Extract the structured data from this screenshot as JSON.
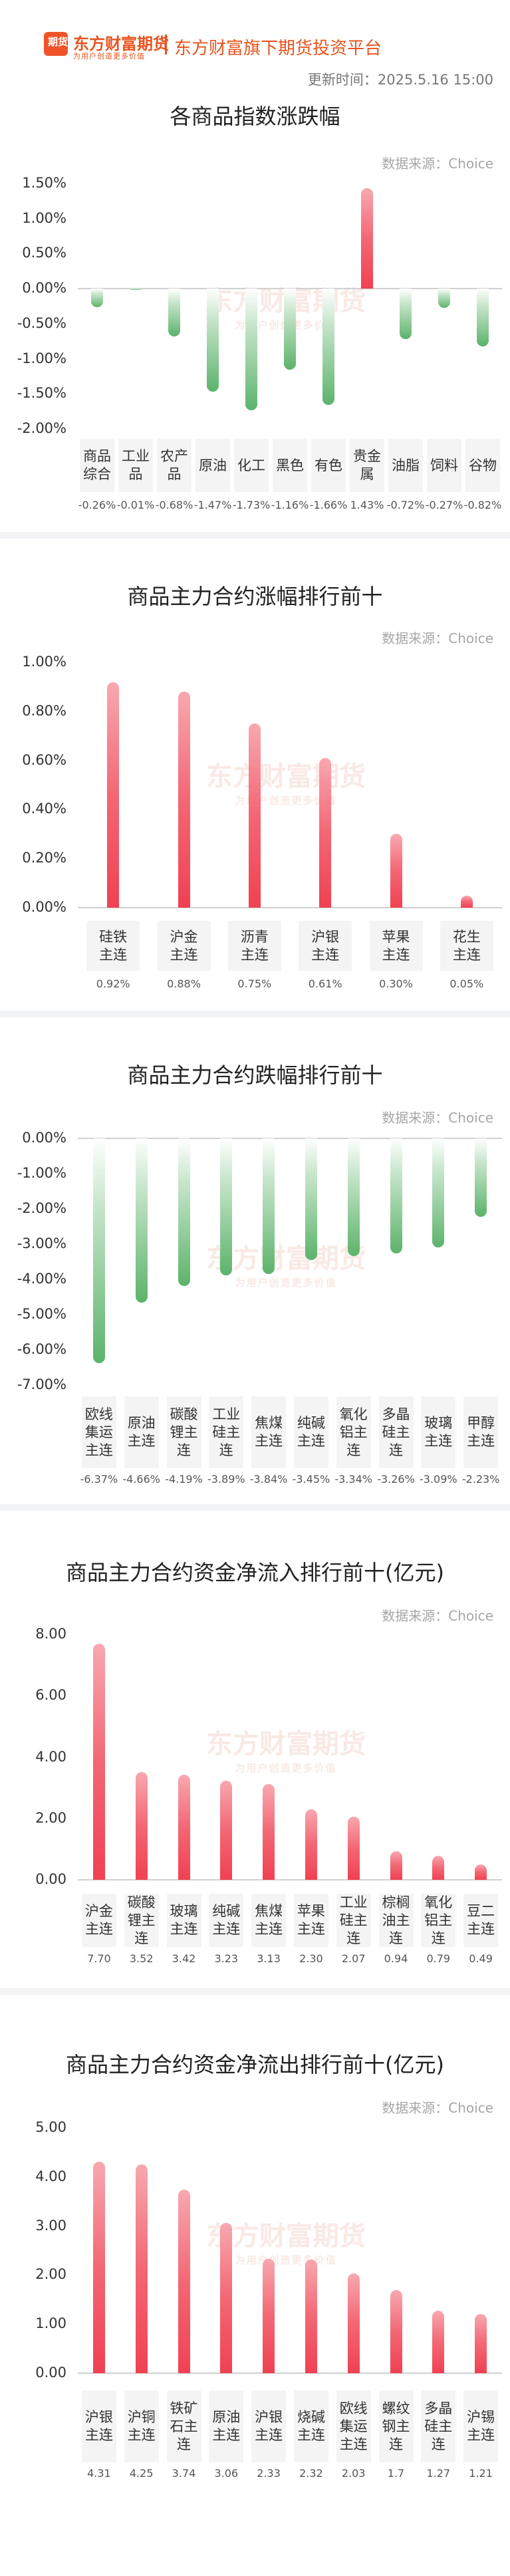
{
  "header": {
    "logo_glyph": "期货",
    "brand_name": "东方财富期货",
    "slogan": "为用户创造更多价值",
    "platform": "东方财富旗下期货投资平台",
    "update_time": "更新时间：2025.5.16 15:00"
  },
  "watermark": {
    "line1": "东方财富期货",
    "line2": "为用户创造更多价值"
  },
  "colors": {
    "up": "#f04152",
    "down": "#5cb36b",
    "axis": "#d0d0d0"
  },
  "sections": [
    {
      "title": "各商品指数涨跌幅",
      "source": "数据来源：Choice",
      "chart_data": {
        "type": "bar",
        "categories": [
          "商品综合",
          "工业品",
          "农产品",
          "原油",
          "化工",
          "黑色",
          "有色",
          "贵金属",
          "油脂",
          "饲料",
          "谷物"
        ],
        "values": [
          -0.26,
          -0.01,
          -0.68,
          -1.47,
          -1.73,
          -1.16,
          -1.66,
          1.43,
          -0.72,
          -0.27,
          -0.82
        ],
        "value_labels": [
          "-0.26%",
          "-0.01%",
          "-0.68%",
          "-1.47%",
          "-1.73%",
          "-1.16%",
          "-1.66%",
          "1.43%",
          "-0.72%",
          "-0.27%",
          "-0.82%"
        ],
        "yticks": [
          "1.50%",
          "1.00%",
          "0.50%",
          "0.00%",
          "-0.50%",
          "-1.00%",
          "-1.50%",
          "-2.00%"
        ],
        "ylim": [
          -2.0,
          1.5
        ]
      }
    },
    {
      "title": "商品主力合约涨幅排行前十",
      "source": "数据来源：Choice",
      "chart_data": {
        "type": "bar",
        "categories": [
          "硅铁主连",
          "沪金主连",
          "沥青主连",
          "沪银主连",
          "苹果主连",
          "花生主连"
        ],
        "values": [
          0.92,
          0.88,
          0.75,
          0.61,
          0.3,
          0.05
        ],
        "value_labels": [
          "0.92%",
          "0.88%",
          "0.75%",
          "0.61%",
          "0.30%",
          "0.05%"
        ],
        "yticks": [
          "1.00%",
          "0.80%",
          "0.60%",
          "0.40%",
          "0.20%",
          "0.00%"
        ],
        "ylim": [
          0,
          1.0
        ]
      }
    },
    {
      "title": "商品主力合约跌幅排行前十",
      "source": "数据来源：Choice",
      "chart_data": {
        "type": "bar",
        "categories": [
          "欧线集运主连",
          "原油主连",
          "碳酸锂主连",
          "工业硅主连",
          "焦煤主连",
          "纯碱主连",
          "氧化铝主连",
          "多晶硅主连",
          "玻璃主连",
          "甲醇主连"
        ],
        "values": [
          -6.37,
          -4.66,
          -4.19,
          -3.89,
          -3.84,
          -3.45,
          -3.34,
          -3.26,
          -3.09,
          -2.23
        ],
        "value_labels": [
          "-6.37%",
          "-4.66%",
          "-4.19%",
          "-3.89%",
          "-3.84%",
          "-3.45%",
          "-3.34%",
          "-3.26%",
          "-3.09%",
          "-2.23%"
        ],
        "yticks": [
          "0.00%",
          "-1.00%",
          "-2.00%",
          "-3.00%",
          "-4.00%",
          "-5.00%",
          "-6.00%",
          "-7.00%"
        ],
        "ylim": [
          -7.0,
          0
        ]
      }
    },
    {
      "title": "商品主力合约资金净流入排行前十(亿元)",
      "source": "数据来源：Choice",
      "chart_data": {
        "type": "bar",
        "categories": [
          "沪金主连",
          "碳酸锂主连",
          "玻璃主连",
          "纯碱主连",
          "焦煤主连",
          "苹果主连",
          "工业硅主连",
          "棕榈油主连",
          "氧化铝主连",
          "豆二主连"
        ],
        "values": [
          7.7,
          3.52,
          3.42,
          3.23,
          3.13,
          2.3,
          2.07,
          0.94,
          0.79,
          0.49
        ],
        "value_labels": [
          "7.70",
          "3.52",
          "3.42",
          "3.23",
          "3.13",
          "2.30",
          "2.07",
          "0.94",
          "0.79",
          "0.49"
        ],
        "yticks": [
          "8.00",
          "6.00",
          "4.00",
          "2.00",
          "0.00"
        ],
        "ylim": [
          0,
          8.0
        ]
      }
    },
    {
      "title": "商品主力合约资金净流出排行前十(亿元)",
      "source": "数据来源：Choice",
      "chart_data": {
        "type": "bar",
        "categories": [
          "沪银主连",
          "沪铜主连",
          "铁矿石主连",
          "原油主连",
          "沪银主连",
          "烧碱主连",
          "欧线集运主连",
          "螺纹钢主连",
          "多晶硅主连",
          "沪锡主连"
        ],
        "values": [
          4.31,
          4.25,
          3.74,
          3.06,
          2.33,
          2.32,
          2.03,
          1.7,
          1.27,
          1.21
        ],
        "value_labels": [
          "4.31",
          "4.25",
          "3.74",
          "3.06",
          "2.33",
          "2.32",
          "2.03",
          "1.7",
          "1.27",
          "1.21"
        ],
        "yticks": [
          "5.00",
          "4.00",
          "3.00",
          "2.00",
          "1.00",
          "0.00"
        ],
        "ylim": [
          0,
          5.0
        ]
      }
    }
  ]
}
